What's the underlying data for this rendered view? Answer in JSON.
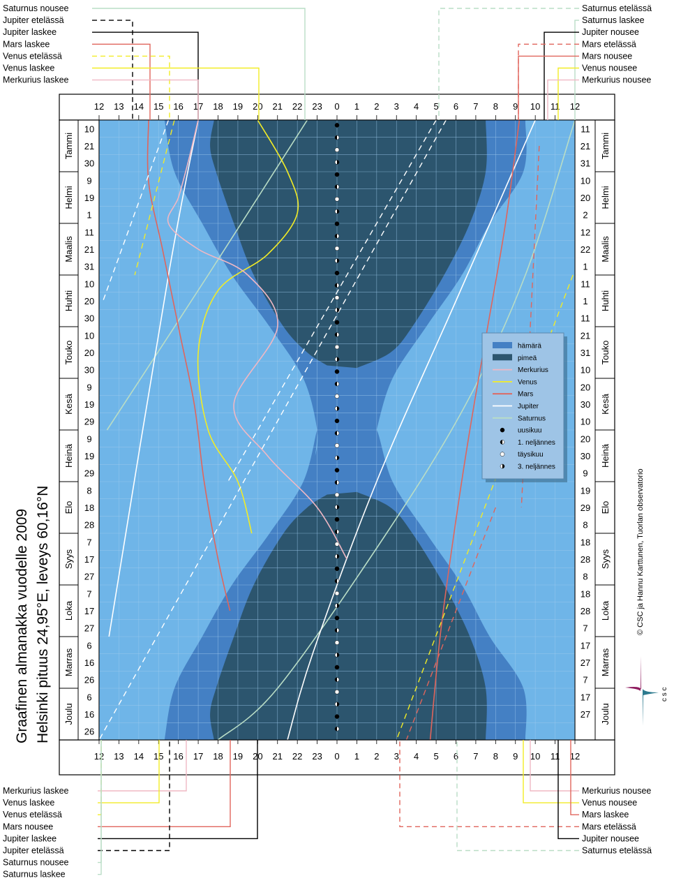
{
  "title_line1": "Graafinen almanakka vuodelle 2009",
  "title_line2": "Helsinki  pituus 24,95°E,  leveys 60,16°N",
  "credit": "© CSC ja Hannu Karttunen, Tuorlan observatorio",
  "logo_text": "c s c",
  "colors": {
    "day": "#6fb5e8",
    "twilight": "#4480c4",
    "night": "#2c556e",
    "mercury": "#f0b8c4",
    "venus": "#f2ec26",
    "mars": "#e0655c",
    "jupiter": "#ffffff",
    "saturn": "#b9ddc6",
    "grid": "#9fcbee"
  },
  "chart_data": {
    "type": "line",
    "x_axis": {
      "ticks": [
        "12",
        "13",
        "14",
        "15",
        "16",
        "17",
        "18",
        "19",
        "20",
        "21",
        "22",
        "23",
        "0",
        "1",
        "2",
        "3",
        "4",
        "5",
        "6",
        "7",
        "8",
        "9",
        "10",
        "11",
        "12"
      ],
      "range_hours": [
        12,
        36
      ]
    },
    "months": [
      "Tammi",
      "Helmi",
      "Maalis",
      "Huhti",
      "Touko",
      "Kesä",
      "Heinä",
      "Elo",
      "Syys",
      "Loka",
      "Marras",
      "Joulu"
    ],
    "day_labels_left": [
      "10",
      "21",
      "30",
      "9",
      "19",
      "1",
      "11",
      "21",
      "31",
      "10",
      "20",
      "30",
      "10",
      "20",
      "30",
      "9",
      "19",
      "29",
      "9",
      "19",
      "29",
      "8",
      "18",
      "28",
      "7",
      "17",
      "27",
      "7",
      "17",
      "27",
      "6",
      "16",
      "26",
      "6",
      "16",
      "26"
    ],
    "day_labels_right": [
      "11",
      "21",
      "31",
      "10",
      "20",
      "2",
      "12",
      "22",
      "1",
      "11",
      "1",
      "11",
      "21",
      "31",
      "10",
      "20",
      "30",
      "10",
      "20",
      "30",
      "9",
      "19",
      "29",
      "8",
      "18",
      "28",
      "8",
      "18",
      "28",
      "7",
      "17",
      "27",
      "7",
      "17",
      "27"
    ],
    "legend": [
      {
        "key": "twilight",
        "label": "hämärä"
      },
      {
        "key": "night",
        "label": "pimeä"
      },
      {
        "key": "mercury",
        "label": "Merkurius"
      },
      {
        "key": "venus",
        "label": "Venus"
      },
      {
        "key": "mars",
        "label": "Mars"
      },
      {
        "key": "jupiter",
        "label": "Jupiter"
      },
      {
        "key": "saturn",
        "label": "Saturnus"
      },
      {
        "key": "new",
        "label": "uusikuu"
      },
      {
        "key": "first",
        "label": "1. neljännes"
      },
      {
        "key": "full",
        "label": "täysikuu"
      },
      {
        "key": "third",
        "label": "3. neljännes"
      }
    ],
    "callouts_top_left": [
      "Saturnus nousee",
      "Jupiter etelässä",
      "Jupiter laskee",
      "Mars laskee",
      "Venus etelässä",
      "Venus laskee",
      "Merkurius laskee"
    ],
    "callouts_top_right": [
      "Saturnus etelässä",
      "Saturnus laskee",
      "Jupiter nousee",
      "Mars etelässä",
      "Mars nousee",
      "Venus nousee",
      "Merkurius nousee"
    ],
    "callouts_bottom_left": [
      "Merkurius laskee",
      "Venus laskee",
      "Venus etelässä",
      "Mars nousee",
      "Jupiter laskee",
      "Jupiter etelässä",
      "Saturnus nousee",
      "Saturnus laskee"
    ],
    "callouts_bottom_right": [
      "Merkurius nousee",
      "Venus nousee",
      "Mars laskee",
      "Mars etelässä",
      "Jupiter nousee",
      "Saturnus etelässä"
    ],
    "series": [
      {
        "key": "night_evening",
        "points": [
          [
            17.8,
            0
          ],
          [
            17.6,
            0.5
          ],
          [
            17.9,
            1
          ],
          [
            18.8,
            2
          ],
          [
            19.8,
            3
          ],
          [
            21.3,
            4
          ],
          [
            22.5,
            4.5
          ],
          [
            23.5,
            4.75
          ]
        ]
      },
      {
        "key": "night_morning",
        "points": [
          [
            31.5,
            0
          ],
          [
            31.5,
            1
          ],
          [
            30.7,
            2
          ],
          [
            29.4,
            3
          ],
          [
            27.8,
            4
          ],
          [
            26.7,
            4.5
          ],
          [
            25.0,
            4.8
          ]
        ]
      },
      {
        "key": "twilight_evening",
        "points": [
          [
            15.3,
            0
          ],
          [
            15.8,
            1
          ],
          [
            17.2,
            2
          ],
          [
            18.7,
            3
          ],
          [
            20.6,
            4
          ],
          [
            22.3,
            5
          ],
          [
            23.0,
            6
          ],
          [
            22.9,
            6.5
          ]
        ]
      },
      {
        "key": "twilight_morning",
        "points": [
          [
            33.5,
            0
          ],
          [
            33.4,
            1
          ],
          [
            31.7,
            2
          ],
          [
            30.3,
            3
          ],
          [
            28.5,
            4
          ],
          [
            26.8,
            5
          ],
          [
            26.0,
            6
          ],
          [
            25.8,
            6.5
          ]
        ]
      },
      {
        "key": "mercury_set",
        "points": [
          [
            17.0,
            0
          ],
          [
            16.5,
            0.8
          ],
          [
            16.0,
            1.5
          ],
          [
            15.5,
            2
          ],
          [
            17.0,
            2.5
          ],
          [
            19.5,
            3
          ],
          [
            21.0,
            4
          ],
          [
            18.8,
            5.5
          ],
          [
            20.5,
            6.5
          ],
          [
            23.0,
            7.5
          ],
          [
            24.5,
            8.5
          ]
        ]
      },
      {
        "key": "venus_set",
        "points": [
          [
            20.0,
            0
          ],
          [
            21.5,
            1.0
          ],
          [
            22.0,
            1.8
          ],
          [
            20.5,
            2.6
          ],
          [
            18.0,
            3.3
          ],
          [
            17.0,
            4.5
          ],
          [
            17.5,
            6.0
          ],
          [
            19.0,
            7.0
          ],
          [
            19.7,
            8.0
          ]
        ]
      },
      {
        "key": "mars_set",
        "points": [
          [
            14.5,
            0
          ],
          [
            14.5,
            1.2
          ],
          [
            15.2,
            2.5
          ],
          [
            16.0,
            4.0
          ],
          [
            16.8,
            5.5
          ],
          [
            17.3,
            7.0
          ],
          [
            18.0,
            8.5
          ],
          [
            18.6,
            9.5
          ]
        ]
      },
      {
        "key": "mars_rise",
        "points": [
          [
            33.2,
            0
          ],
          [
            32.5,
            2
          ],
          [
            31.6,
            4
          ],
          [
            30.7,
            6
          ],
          [
            29.9,
            8
          ],
          [
            29.2,
            10
          ],
          [
            28.7,
            12
          ]
        ]
      },
      {
        "key": "jupiter_set",
        "points": [
          [
            17.0,
            0
          ],
          [
            15.5,
            3.0
          ],
          [
            12.5,
            10.0
          ]
        ]
      },
      {
        "key": "jupiter_rise",
        "points": [
          [
            34.0,
            0
          ],
          [
            30.0,
            3.5
          ],
          [
            26.0,
            7.0
          ],
          [
            22.8,
            10.3
          ],
          [
            21.5,
            12
          ]
        ]
      },
      {
        "key": "saturn_rise",
        "points": [
          [
            22.5,
            0
          ],
          [
            17.5,
            3.0
          ],
          [
            12.4,
            6.0
          ]
        ]
      },
      {
        "key": "saturn_set",
        "points": [
          [
            36.0,
            0
          ],
          [
            33.5,
            3.0
          ],
          [
            30.5,
            5.5
          ],
          [
            26.5,
            8.0
          ],
          [
            21.0,
            11.0
          ],
          [
            18.0,
            12
          ]
        ]
      }
    ],
    "moon_phases": [
      "new",
      "first",
      "full",
      "third"
    ]
  }
}
